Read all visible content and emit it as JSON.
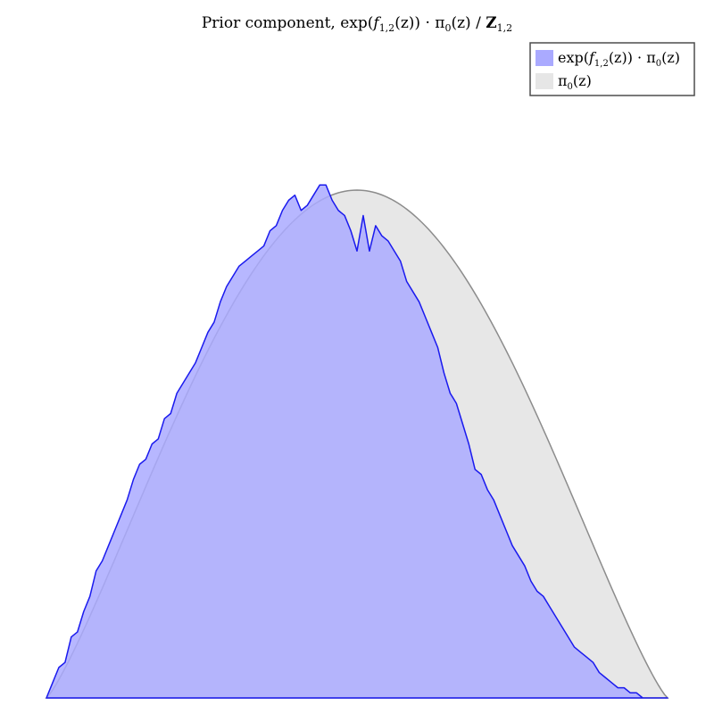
{
  "chart_data": {
    "type": "area",
    "title": "Prior component, exp(f_{1,2}(z)) · π_0(z) / Z_{1,2}",
    "title_parts": {
      "prefix": "Prior component, exp(",
      "f": "f",
      "f_sub": "1,2",
      "mid": "(z)) · π",
      "pi_sub": "0",
      "after_pi": "(z) / ",
      "Z": "Z",
      "Z_sub": "1,2"
    },
    "xlabel": "",
    "ylabel": "",
    "axes_visible": false,
    "grid": false,
    "legend_position": "top-right",
    "xlim": [
      0,
      1
    ],
    "ylim": [
      0,
      1
    ],
    "series": [
      {
        "name": "exp(f_{1,2}(z)) · π_0(z)",
        "legend_parts": {
          "prefix": "exp(",
          "f": "f",
          "f_sub": "1,2",
          "mid": "(z)) · π",
          "pi_sub": "0",
          "suffix": "(z)"
        },
        "fill_color": "#aaaaff",
        "fill_opacity": 0.85,
        "line_color": "#1a1aee",
        "x": [
          0.0,
          0.01,
          0.02,
          0.03,
          0.04,
          0.05,
          0.06,
          0.07,
          0.08,
          0.09,
          0.1,
          0.11,
          0.12,
          0.13,
          0.14,
          0.15,
          0.16,
          0.17,
          0.18,
          0.19,
          0.2,
          0.21,
          0.22,
          0.23,
          0.24,
          0.25,
          0.26,
          0.27,
          0.28,
          0.29,
          0.3,
          0.31,
          0.32,
          0.33,
          0.34,
          0.35,
          0.36,
          0.37,
          0.38,
          0.39,
          0.4,
          0.41,
          0.42,
          0.43,
          0.44,
          0.45,
          0.46,
          0.47,
          0.48,
          0.49,
          0.5,
          0.51,
          0.52,
          0.53,
          0.54,
          0.55,
          0.56,
          0.57,
          0.58,
          0.59,
          0.6,
          0.61,
          0.62,
          0.63,
          0.64,
          0.65,
          0.66,
          0.67,
          0.68,
          0.69,
          0.7,
          0.71,
          0.72,
          0.73,
          0.74,
          0.75,
          0.76,
          0.77,
          0.78,
          0.79,
          0.8,
          0.81,
          0.82,
          0.83,
          0.84,
          0.85,
          0.86,
          0.87,
          0.88,
          0.89,
          0.9,
          0.91,
          0.92,
          0.93,
          0.94,
          0.95,
          0.96,
          0.97,
          0.98,
          0.99,
          1.0
        ],
        "values": [
          0.0,
          0.03,
          0.06,
          0.07,
          0.12,
          0.13,
          0.17,
          0.2,
          0.25,
          0.27,
          0.3,
          0.33,
          0.36,
          0.39,
          0.43,
          0.46,
          0.47,
          0.5,
          0.51,
          0.55,
          0.56,
          0.6,
          0.62,
          0.64,
          0.66,
          0.69,
          0.72,
          0.74,
          0.78,
          0.81,
          0.83,
          0.85,
          0.86,
          0.87,
          0.88,
          0.89,
          0.92,
          0.93,
          0.96,
          0.98,
          0.99,
          0.96,
          0.97,
          0.99,
          1.01,
          1.01,
          0.98,
          0.96,
          0.95,
          0.92,
          0.88,
          0.95,
          0.88,
          0.93,
          0.91,
          0.9,
          0.88,
          0.86,
          0.82,
          0.8,
          0.78,
          0.75,
          0.72,
          0.69,
          0.64,
          0.6,
          0.58,
          0.54,
          0.5,
          0.45,
          0.44,
          0.41,
          0.39,
          0.36,
          0.33,
          0.3,
          0.28,
          0.26,
          0.23,
          0.21,
          0.2,
          0.18,
          0.16,
          0.14,
          0.12,
          0.1,
          0.09,
          0.08,
          0.07,
          0.05,
          0.04,
          0.03,
          0.02,
          0.02,
          0.01,
          0.01,
          0.0,
          0.0,
          0.0,
          0.0,
          0.0
        ]
      },
      {
        "name": "π_0(z)",
        "legend_parts": {
          "prefix": "π",
          "pi_sub": "0",
          "suffix": "(z)"
        },
        "fill_color": "#e6e6e6",
        "fill_opacity": 0.95,
        "line_color": "#8c8c8c",
        "curve": "sin(pi*x)^1.2"
      }
    ]
  }
}
